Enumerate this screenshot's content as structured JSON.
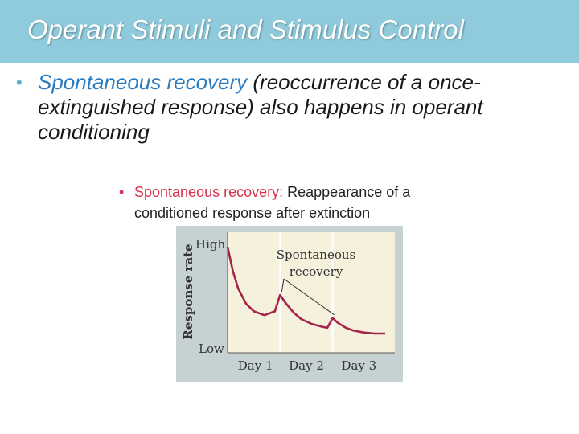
{
  "slide": {
    "title": "Operant Stimuli and Stimulus Control",
    "bullet": {
      "marker": "•",
      "term": "Spontaneous recovery",
      "rest": " (reoccurrence of a once-extinguished response) also happens in operant conditioning"
    },
    "definition": {
      "marker": "•",
      "term": "Spontaneous recovery:",
      "rest": " Reappearance of a conditioned response after extinction"
    }
  },
  "colors": {
    "title_bar": "#8fcbdc",
    "accent_blue": "#2a7bbf",
    "accent_red": "#d4314a",
    "curve": "#a3254a",
    "chart_bg": "#c6d1d1",
    "plot_bg": "#f6f1dd"
  },
  "chart_data": {
    "type": "line",
    "ylabel": "Response rate",
    "y_tick_labels": [
      "High",
      "Low"
    ],
    "categories": [
      "Day 1",
      "Day 2",
      "Day 3"
    ],
    "annotation": "Spontaneous recovery",
    "series": [
      {
        "x": [
          0,
          0.1,
          0.2,
          0.35,
          0.5,
          0.7,
          0.9,
          1.0,
          1.1,
          1.25,
          1.4,
          1.6,
          1.8,
          1.9,
          2.0,
          2.1,
          2.25,
          2.4,
          2.6,
          2.8,
          3.0
        ],
        "values": [
          95,
          70,
          52,
          36,
          28,
          24,
          28,
          45,
          37,
          27,
          20,
          15,
          12,
          11,
          21,
          16,
          11,
          8,
          6,
          5,
          5
        ]
      }
    ],
    "xlim": [
      0,
      3
    ],
    "ylim": [
      0,
      100
    ]
  }
}
